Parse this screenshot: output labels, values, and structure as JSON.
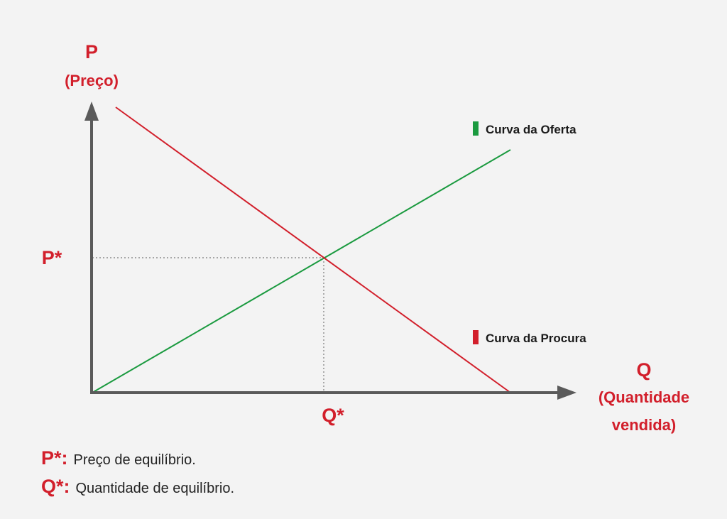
{
  "labels": {
    "p_axis": "P",
    "p_axis_sub": "(Preço)",
    "q_axis": "Q",
    "q_axis_sub1": "(Quantidade",
    "q_axis_sub2": "vendida)",
    "p_star": "P*",
    "q_star": "Q*"
  },
  "legend": {
    "supply": "Curva da Oferta",
    "demand": "Curva da Procura"
  },
  "notes": {
    "p_key": "P*:",
    "p_text": "Preço de equilíbrio.",
    "q_key": "Q*:",
    "q_text": "Quantidade de equilíbrio."
  },
  "colors": {
    "supply": "#1a9a3f",
    "demand": "#d21f2b",
    "axis": "#5a5a5a",
    "label": "#d21f2b"
  },
  "icons": {
    "y_arrow": "arrow-up-icon",
    "x_arrow": "arrow-right-icon"
  }
}
